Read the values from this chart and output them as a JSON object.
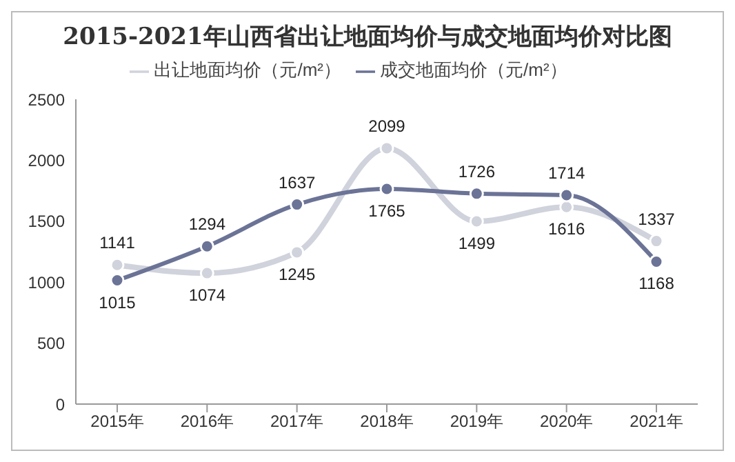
{
  "chart_data": {
    "type": "line",
    "title": "2015-2021年山西省出让地面均价与成交地面均价对比图",
    "categories": [
      "2015年",
      "2016年",
      "2017年",
      "2018年",
      "2019年",
      "2020年",
      "2021年"
    ],
    "series": [
      {
        "name": "出让地面均价（元/m²）",
        "color": "#d0d2dc",
        "values": [
          1141,
          1074,
          1245,
          2099,
          1499,
          1616,
          1337
        ]
      },
      {
        "name": "成交地面均价（元/m²）",
        "color": "#6b7396",
        "values": [
          1015,
          1294,
          1637,
          1765,
          1726,
          1714,
          1168
        ]
      }
    ],
    "ylim": [
      0,
      2500
    ],
    "yticks": [
      0,
      500,
      1000,
      1500,
      2000,
      2500
    ],
    "grid": false,
    "legend": "top",
    "marker": "circle",
    "line_style": "solid",
    "data_labels": true
  }
}
